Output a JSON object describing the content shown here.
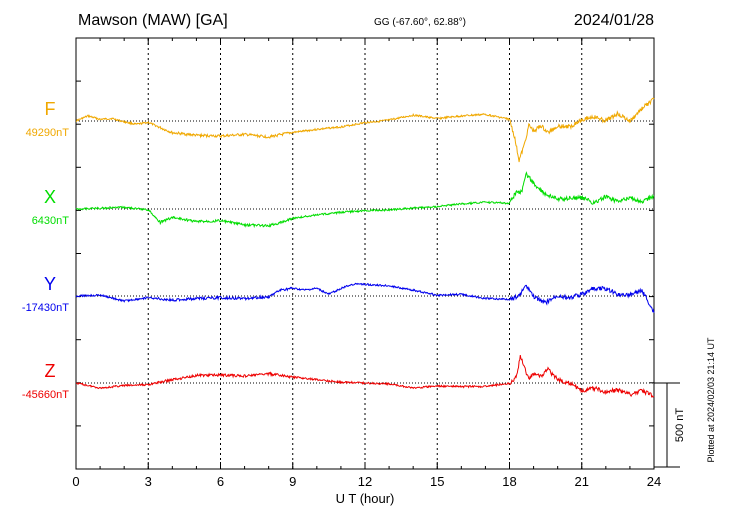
{
  "header": {
    "title": "Mawson (MAW)  [GA]",
    "coords": "GG (-67.60°,  62.88°)",
    "date": "2024/01/28"
  },
  "footer": {
    "plotted": "Plotted at 2024/02/03 21:14 UT"
  },
  "chart_data": {
    "type": "line",
    "xlabel": "U T (hour)",
    "xlim": [
      0,
      24
    ],
    "xticks": [
      0,
      3,
      6,
      9,
      12,
      15,
      18,
      21,
      24
    ],
    "grid": true,
    "scale_bar": {
      "value": 500,
      "label": "500 nT"
    },
    "series": [
      {
        "name": "F",
        "baseline_label": "49290nT",
        "baseline": 49290,
        "color": "#f0a800",
        "points": [
          [
            0,
            49291
          ],
          [
            0.5,
            49320
          ],
          [
            1,
            49300
          ],
          [
            1.5,
            49305
          ],
          [
            2,
            49285
          ],
          [
            2.5,
            49270
          ],
          [
            3,
            49282
          ],
          [
            3.5,
            49250
          ],
          [
            4,
            49220
          ],
          [
            5,
            49205
          ],
          [
            6,
            49200
          ],
          [
            7,
            49210
          ],
          [
            8,
            49195
          ],
          [
            9,
            49222
          ],
          [
            10,
            49240
          ],
          [
            11,
            49255
          ],
          [
            12,
            49280
          ],
          [
            13,
            49295
          ],
          [
            14,
            49325
          ],
          [
            15,
            49305
          ],
          [
            16,
            49320
          ],
          [
            17,
            49330
          ],
          [
            18,
            49300
          ],
          [
            18.2,
            49200
          ],
          [
            18.4,
            49055
          ],
          [
            18.6,
            49140
          ],
          [
            18.8,
            49265
          ],
          [
            19,
            49230
          ],
          [
            19.3,
            49262
          ],
          [
            19.6,
            49220
          ],
          [
            20,
            49262
          ],
          [
            20.5,
            49255
          ],
          [
            21,
            49300
          ],
          [
            21.5,
            49315
          ],
          [
            22,
            49290
          ],
          [
            22.5,
            49335
          ],
          [
            23,
            49288
          ],
          [
            23.5,
            49365
          ],
          [
            24,
            49420
          ]
        ]
      },
      {
        "name": "X",
        "baseline_label": "6430nT",
        "baseline": 6430,
        "color": "#00dd00",
        "points": [
          [
            0,
            6430
          ],
          [
            1,
            6435
          ],
          [
            2,
            6440
          ],
          [
            3,
            6425
          ],
          [
            3.5,
            6350
          ],
          [
            4,
            6380
          ],
          [
            5,
            6355
          ],
          [
            6,
            6360
          ],
          [
            7,
            6335
          ],
          [
            8,
            6330
          ],
          [
            8.5,
            6350
          ],
          [
            9,
            6375
          ],
          [
            10,
            6395
          ],
          [
            11,
            6410
          ],
          [
            12,
            6420
          ],
          [
            13,
            6425
          ],
          [
            14,
            6435
          ],
          [
            15,
            6445
          ],
          [
            16,
            6460
          ],
          [
            17,
            6470
          ],
          [
            18,
            6465
          ],
          [
            18.3,
            6535
          ],
          [
            18.5,
            6530
          ],
          [
            18.7,
            6640
          ],
          [
            19,
            6580
          ],
          [
            19.5,
            6520
          ],
          [
            20,
            6490
          ],
          [
            21,
            6500
          ],
          [
            21.5,
            6465
          ],
          [
            22,
            6505
          ],
          [
            22.5,
            6470
          ],
          [
            23,
            6500
          ],
          [
            23.5,
            6470
          ],
          [
            24,
            6510
          ]
        ]
      },
      {
        "name": "Y",
        "baseline_label": "-17430nT",
        "baseline": -17430,
        "color": "#0000ee",
        "points": [
          [
            0,
            -17430
          ],
          [
            1,
            -17425
          ],
          [
            2,
            -17460
          ],
          [
            3,
            -17440
          ],
          [
            4,
            -17455
          ],
          [
            5,
            -17445
          ],
          [
            6,
            -17440
          ],
          [
            7,
            -17445
          ],
          [
            8,
            -17435
          ],
          [
            8.5,
            -17395
          ],
          [
            9,
            -17385
          ],
          [
            9.5,
            -17395
          ],
          [
            10,
            -17385
          ],
          [
            10.5,
            -17420
          ],
          [
            11,
            -17385
          ],
          [
            11.5,
            -17360
          ],
          [
            12,
            -17360
          ],
          [
            13,
            -17370
          ],
          [
            14,
            -17395
          ],
          [
            15,
            -17425
          ],
          [
            16,
            -17420
          ],
          [
            17,
            -17445
          ],
          [
            18,
            -17450
          ],
          [
            18.4,
            -17430
          ],
          [
            18.7,
            -17365
          ],
          [
            19,
            -17435
          ],
          [
            19.5,
            -17470
          ],
          [
            20,
            -17430
          ],
          [
            20.5,
            -17440
          ],
          [
            21,
            -17420
          ],
          [
            21.5,
            -17385
          ],
          [
            22,
            -17385
          ],
          [
            22.5,
            -17420
          ],
          [
            23,
            -17425
          ],
          [
            23.5,
            -17395
          ],
          [
            24,
            -17530
          ]
        ]
      },
      {
        "name": "Z",
        "baseline_label": "-45660nT",
        "baseline": -45660,
        "color": "#ee0000",
        "points": [
          [
            0,
            -45660
          ],
          [
            1,
            -45690
          ],
          [
            2,
            -45675
          ],
          [
            3,
            -45670
          ],
          [
            4,
            -45640
          ],
          [
            5,
            -45615
          ],
          [
            6,
            -45612
          ],
          [
            7,
            -45618
          ],
          [
            8,
            -45605
          ],
          [
            9,
            -45625
          ],
          [
            10,
            -45640
          ],
          [
            11,
            -45655
          ],
          [
            12,
            -45660
          ],
          [
            13,
            -45665
          ],
          [
            14,
            -45690
          ],
          [
            15,
            -45678
          ],
          [
            16,
            -45682
          ],
          [
            17,
            -45680
          ],
          [
            18,
            -45662
          ],
          [
            18.3,
            -45620
          ],
          [
            18.45,
            -45495
          ],
          [
            18.6,
            -45560
          ],
          [
            18.8,
            -45640
          ],
          [
            19,
            -45600
          ],
          [
            19.3,
            -45620
          ],
          [
            19.6,
            -45580
          ],
          [
            20,
            -45640
          ],
          [
            20.5,
            -45660
          ],
          [
            21,
            -45705
          ],
          [
            21.5,
            -45690
          ],
          [
            22,
            -45715
          ],
          [
            22.5,
            -45700
          ],
          [
            23,
            -45730
          ],
          [
            23.5,
            -45705
          ],
          [
            24,
            -45740
          ]
        ]
      }
    ]
  }
}
